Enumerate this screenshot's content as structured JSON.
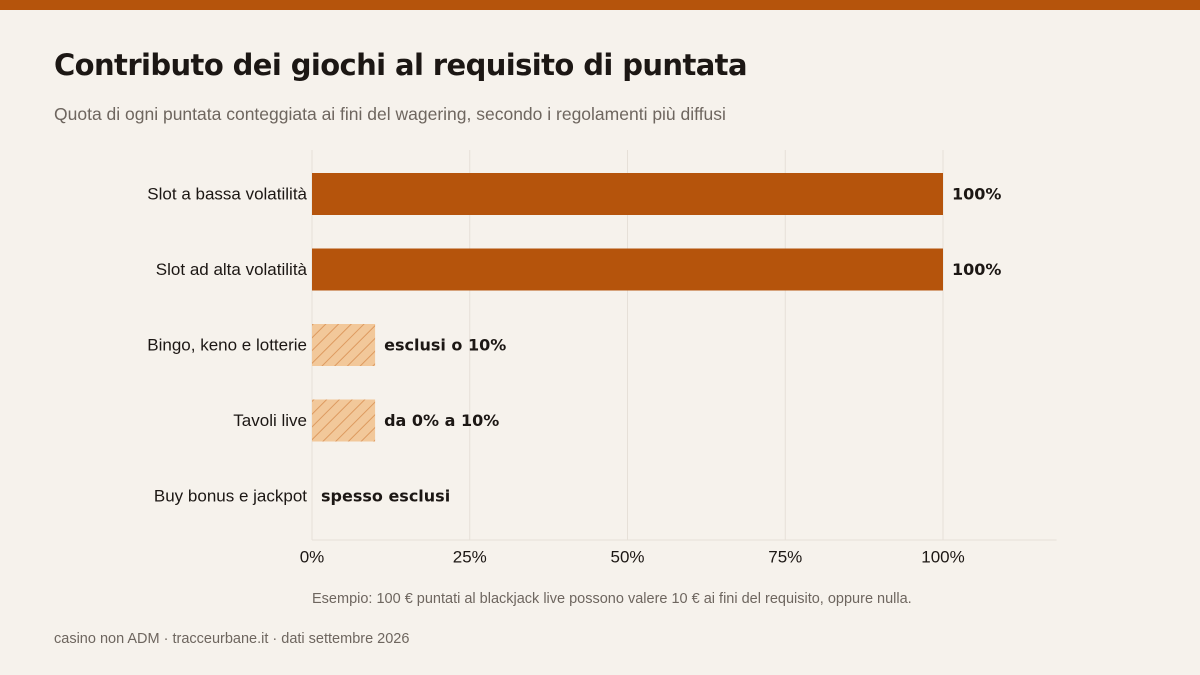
{
  "header": {
    "title": "Contributo dei giochi al requisito di puntata",
    "subtitle": "Quota di ogni puntata conteggiata ai fini del wagering, secondo i regolamenti più diffusi"
  },
  "footer": {
    "note": "Esempio: 100 € puntati al blackjack live possono valere 10 € ai fini del requisito, oppure nulla.",
    "source": "casino non ADM · tracceurbane.it · dati settembre 2026"
  },
  "colors": {
    "accent": "#b5540c",
    "hatch_fill": "#f2c89a",
    "hatch_stroke": "#dd9a60",
    "background": "#f6f2ec",
    "grid": "#e6e0d8"
  },
  "chart_data": {
    "type": "bar",
    "orientation": "horizontal",
    "title": "Contributo dei giochi al requisito di puntata",
    "subtitle": "Quota di ogni puntata conteggiata ai fini del wagering, secondo i regolamenti più diffusi",
    "categories": [
      "Slot a bassa volatilità",
      "Slot ad alta volatilità",
      "Bingo, keno e lotterie",
      "Tavoli live",
      "Buy bonus e jackpot"
    ],
    "values": [
      100,
      100,
      10,
      10,
      0
    ],
    "value_labels": [
      "100%",
      "100%",
      "esclusi o 10%",
      "da 0% a 10%",
      "spesso esclusi"
    ],
    "styles": [
      "solid",
      "solid",
      "hatched",
      "hatched",
      "none"
    ],
    "xlim": [
      0,
      118
    ],
    "xticks": [
      0,
      25,
      50,
      75,
      100
    ],
    "xtick_labels": [
      "0%",
      "25%",
      "50%",
      "75%",
      "100%"
    ],
    "grid": true,
    "xlabel": "",
    "ylabel": ""
  }
}
